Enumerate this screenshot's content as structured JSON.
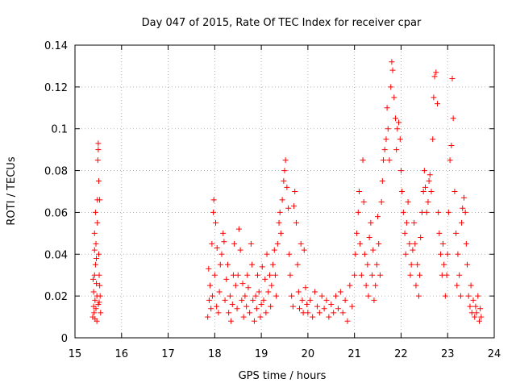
{
  "chart_data": {
    "type": "scatter",
    "title": "Day 047 of 2015, Rate Of TEC Index for receiver cpar",
    "xlabel": "GPS time / hours",
    "ylabel": "ROTI / TECUs",
    "xlim": [
      15,
      24
    ],
    "ylim": [
      0,
      0.14
    ],
    "x_ticks": [
      15,
      16,
      17,
      18,
      19,
      20,
      21,
      22,
      23,
      24
    ],
    "y_ticks": [
      0,
      0.02,
      0.04,
      0.06,
      0.08,
      0.1,
      0.12,
      0.14
    ],
    "x_tick_labels": [
      "15",
      "16",
      "17",
      "18",
      "19",
      "20",
      "21",
      "22",
      "23",
      "24"
    ],
    "y_tick_labels": [
      "0",
      "0.02",
      "0.04",
      "0.06",
      "0.08",
      "0.1",
      "0.12",
      "0.14"
    ],
    "grid": true,
    "marker": "+",
    "color": "#ff0000",
    "series": [
      {
        "name": "ROTI",
        "points": [
          [
            15.38,
            0.01
          ],
          [
            15.4,
            0.015
          ],
          [
            15.4,
            0.022
          ],
          [
            15.41,
            0.012
          ],
          [
            15.42,
            0.03
          ],
          [
            15.42,
            0.042
          ],
          [
            15.42,
            0.05
          ],
          [
            15.43,
            0.018
          ],
          [
            15.44,
            0.035
          ],
          [
            15.45,
            0.045
          ],
          [
            15.45,
            0.014
          ],
          [
            15.46,
            0.038
          ],
          [
            15.46,
            0.026
          ],
          [
            15.47,
            0.008
          ],
          [
            15.47,
            0.02
          ],
          [
            15.48,
            0.055
          ],
          [
            15.48,
            0.066
          ],
          [
            15.49,
            0.085
          ],
          [
            15.5,
            0.093
          ],
          [
            15.5,
            0.09
          ],
          [
            15.51,
            0.075
          ],
          [
            15.51,
            0.04
          ],
          [
            15.52,
            0.03
          ],
          [
            15.52,
            0.017
          ],
          [
            15.53,
            0.066
          ],
          [
            15.54,
            0.02
          ],
          [
            15.55,
            0.012
          ],
          [
            15.43,
            0.009
          ],
          [
            15.39,
            0.028
          ],
          [
            15.44,
            0.06
          ],
          [
            15.5,
            0.016
          ],
          [
            15.53,
            0.025
          ],
          [
            17.85,
            0.01
          ],
          [
            17.87,
            0.033
          ],
          [
            17.88,
            0.018
          ],
          [
            17.9,
            0.025
          ],
          [
            17.92,
            0.014
          ],
          [
            17.94,
            0.045
          ],
          [
            17.95,
            0.02
          ],
          [
            17.97,
            0.06
          ],
          [
            17.98,
            0.066
          ],
          [
            18.0,
            0.03
          ],
          [
            18.02,
            0.055
          ],
          [
            18.04,
            0.015
          ],
          [
            18.05,
            0.043
          ],
          [
            18.08,
            0.012
          ],
          [
            18.1,
            0.022
          ],
          [
            18.12,
            0.035
          ],
          [
            18.15,
            0.04
          ],
          [
            18.18,
            0.05
          ],
          [
            18.2,
            0.046
          ],
          [
            18.22,
            0.018
          ],
          [
            18.25,
            0.028
          ],
          [
            18.28,
            0.035
          ],
          [
            18.3,
            0.012
          ],
          [
            18.33,
            0.02
          ],
          [
            18.35,
            0.008
          ],
          [
            18.38,
            0.016
          ],
          [
            18.4,
            0.03
          ],
          [
            18.42,
            0.045
          ],
          [
            18.45,
            0.025
          ],
          [
            18.48,
            0.014
          ],
          [
            18.5,
            0.03
          ],
          [
            18.52,
            0.052
          ],
          [
            18.55,
            0.042
          ],
          [
            18.58,
            0.018
          ],
          [
            18.6,
            0.026
          ],
          [
            18.62,
            0.01
          ],
          [
            18.65,
            0.02
          ],
          [
            18.68,
            0.015
          ],
          [
            18.7,
            0.03
          ],
          [
            18.72,
            0.024
          ],
          [
            18.75,
            0.012
          ],
          [
            18.78,
            0.045
          ],
          [
            18.8,
            0.035
          ],
          [
            18.82,
            0.018
          ],
          [
            18.85,
            0.008
          ],
          [
            18.88,
            0.02
          ],
          [
            18.9,
            0.014
          ],
          [
            18.92,
            0.03
          ],
          [
            18.95,
            0.022
          ],
          [
            18.98,
            0.01
          ],
          [
            19.0,
            0.016
          ],
          [
            19.02,
            0.034
          ],
          [
            19.05,
            0.018
          ],
          [
            19.08,
            0.028
          ],
          [
            19.1,
            0.012
          ],
          [
            19.12,
            0.04
          ],
          [
            19.15,
            0.022
          ],
          [
            19.18,
            0.03
          ],
          [
            19.2,
            0.015
          ],
          [
            19.22,
            0.025
          ],
          [
            19.25,
            0.035
          ],
          [
            19.28,
            0.042
          ],
          [
            19.3,
            0.03
          ],
          [
            19.32,
            0.02
          ],
          [
            19.35,
            0.045
          ],
          [
            19.38,
            0.055
          ],
          [
            19.4,
            0.06
          ],
          [
            19.42,
            0.05
          ],
          [
            19.45,
            0.066
          ],
          [
            19.48,
            0.075
          ],
          [
            19.5,
            0.08
          ],
          [
            19.52,
            0.085
          ],
          [
            19.55,
            0.072
          ],
          [
            19.58,
            0.062
          ],
          [
            19.6,
            0.04
          ],
          [
            19.62,
            0.03
          ],
          [
            19.65,
            0.02
          ],
          [
            19.68,
            0.015
          ],
          [
            19.7,
            0.063
          ],
          [
            19.72,
            0.07
          ],
          [
            19.75,
            0.055
          ],
          [
            19.78,
            0.035
          ],
          [
            19.8,
            0.022
          ],
          [
            19.82,
            0.014
          ],
          [
            19.85,
            0.045
          ],
          [
            19.88,
            0.018
          ],
          [
            19.9,
            0.012
          ],
          [
            19.92,
            0.042
          ],
          [
            19.95,
            0.024
          ],
          [
            19.98,
            0.016
          ],
          [
            20.0,
            0.012
          ],
          [
            20.05,
            0.018
          ],
          [
            20.1,
            0.01
          ],
          [
            20.15,
            0.022
          ],
          [
            20.2,
            0.015
          ],
          [
            20.25,
            0.012
          ],
          [
            20.3,
            0.02
          ],
          [
            20.35,
            0.014
          ],
          [
            20.4,
            0.018
          ],
          [
            20.45,
            0.01
          ],
          [
            20.5,
            0.016
          ],
          [
            20.55,
            0.012
          ],
          [
            20.6,
            0.02
          ],
          [
            20.65,
            0.014
          ],
          [
            20.7,
            0.022
          ],
          [
            20.75,
            0.012
          ],
          [
            20.8,
            0.018
          ],
          [
            20.85,
            0.008
          ],
          [
            20.9,
            0.025
          ],
          [
            20.95,
            0.015
          ],
          [
            21.0,
            0.03
          ],
          [
            21.02,
            0.04
          ],
          [
            21.05,
            0.05
          ],
          [
            21.08,
            0.06
          ],
          [
            21.1,
            0.07
          ],
          [
            21.12,
            0.045
          ],
          [
            21.15,
            0.03
          ],
          [
            21.18,
            0.085
          ],
          [
            21.2,
            0.065
          ],
          [
            21.22,
            0.04
          ],
          [
            21.25,
            0.025
          ],
          [
            21.28,
            0.035
          ],
          [
            21.3,
            0.02
          ],
          [
            21.32,
            0.048
          ],
          [
            21.35,
            0.055
          ],
          [
            21.38,
            0.03
          ],
          [
            21.4,
            0.042
          ],
          [
            21.42,
            0.018
          ],
          [
            21.45,
            0.025
          ],
          [
            21.48,
            0.035
          ],
          [
            21.5,
            0.058
          ],
          [
            21.52,
            0.045
          ],
          [
            21.55,
            0.03
          ],
          [
            21.58,
            0.065
          ],
          [
            21.6,
            0.075
          ],
          [
            21.62,
            0.085
          ],
          [
            21.65,
            0.09
          ],
          [
            21.68,
            0.095
          ],
          [
            21.7,
            0.11
          ],
          [
            21.72,
            0.1
          ],
          [
            21.75,
            0.085
          ],
          [
            21.78,
            0.12
          ],
          [
            21.8,
            0.132
          ],
          [
            21.82,
            0.128
          ],
          [
            21.85,
            0.115
          ],
          [
            21.88,
            0.105
          ],
          [
            21.9,
            0.09
          ],
          [
            21.92,
            0.1
          ],
          [
            21.95,
            0.103
          ],
          [
            21.98,
            0.095
          ],
          [
            22.0,
            0.08
          ],
          [
            22.02,
            0.07
          ],
          [
            22.05,
            0.06
          ],
          [
            22.08,
            0.05
          ],
          [
            22.1,
            0.04
          ],
          [
            22.12,
            0.055
          ],
          [
            22.15,
            0.065
          ],
          [
            22.18,
            0.045
          ],
          [
            22.2,
            0.03
          ],
          [
            22.22,
            0.035
          ],
          [
            22.25,
            0.042
          ],
          [
            22.28,
            0.055
          ],
          [
            22.3,
            0.045
          ],
          [
            22.32,
            0.025
          ],
          [
            22.35,
            0.035
          ],
          [
            22.38,
            0.02
          ],
          [
            22.4,
            0.03
          ],
          [
            22.42,
            0.048
          ],
          [
            22.45,
            0.06
          ],
          [
            22.48,
            0.07
          ],
          [
            22.5,
            0.08
          ],
          [
            22.52,
            0.072
          ],
          [
            22.55,
            0.06
          ],
          [
            22.58,
            0.065
          ],
          [
            22.6,
            0.075
          ],
          [
            22.62,
            0.078
          ],
          [
            22.65,
            0.07
          ],
          [
            22.68,
            0.095
          ],
          [
            22.7,
            0.115
          ],
          [
            22.72,
            0.125
          ],
          [
            22.75,
            0.127
          ],
          [
            22.78,
            0.112
          ],
          [
            22.8,
            0.06
          ],
          [
            22.82,
            0.05
          ],
          [
            22.85,
            0.04
          ],
          [
            22.88,
            0.03
          ],
          [
            22.9,
            0.045
          ],
          [
            22.92,
            0.035
          ],
          [
            22.95,
            0.02
          ],
          [
            22.98,
            0.03
          ],
          [
            23.0,
            0.04
          ],
          [
            23.02,
            0.06
          ],
          [
            23.05,
            0.085
          ],
          [
            23.08,
            0.092
          ],
          [
            23.1,
            0.124
          ],
          [
            23.12,
            0.105
          ],
          [
            23.15,
            0.07
          ],
          [
            23.18,
            0.05
          ],
          [
            23.2,
            0.025
          ],
          [
            23.22,
            0.04
          ],
          [
            23.25,
            0.03
          ],
          [
            23.28,
            0.02
          ],
          [
            23.3,
            0.055
          ],
          [
            23.32,
            0.062
          ],
          [
            23.35,
            0.067
          ],
          [
            23.38,
            0.06
          ],
          [
            23.4,
            0.045
          ],
          [
            23.42,
            0.035
          ],
          [
            23.45,
            0.02
          ],
          [
            23.48,
            0.015
          ],
          [
            23.5,
            0.025
          ],
          [
            23.52,
            0.012
          ],
          [
            23.55,
            0.018
          ],
          [
            23.58,
            0.01
          ],
          [
            23.6,
            0.015
          ],
          [
            23.62,
            0.012
          ],
          [
            23.65,
            0.02
          ],
          [
            23.68,
            0.008
          ],
          [
            23.7,
            0.014
          ],
          [
            23.72,
            0.01
          ]
        ]
      }
    ]
  }
}
